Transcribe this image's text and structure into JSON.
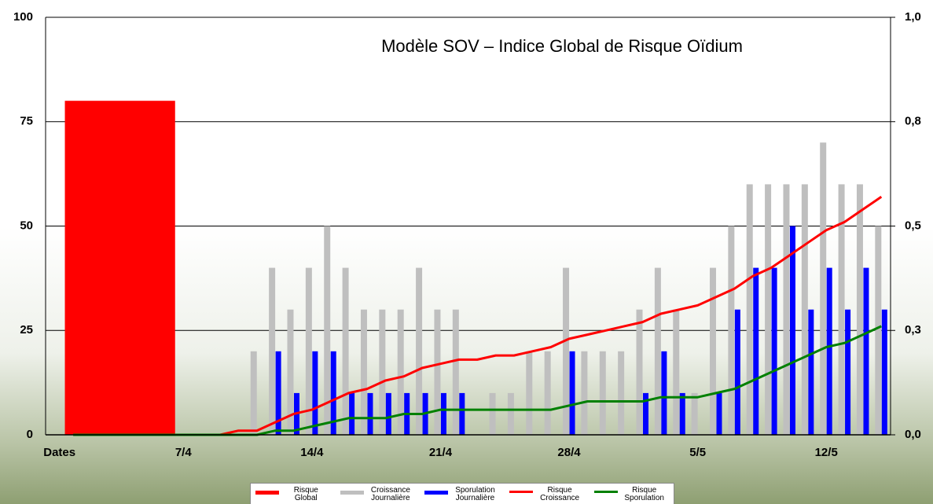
{
  "chart_data": {
    "type": "combo",
    "title": "Modèle SOV – Indice Global de Risque Oïdium",
    "categories": [
      "Dates",
      null,
      null,
      null,
      null,
      null,
      null,
      "7/4",
      null,
      null,
      null,
      null,
      null,
      null,
      "14/4",
      null,
      null,
      null,
      null,
      null,
      null,
      "21/4",
      null,
      null,
      null,
      null,
      null,
      null,
      "28/4",
      null,
      null,
      null,
      null,
      null,
      null,
      "5/5",
      null,
      null,
      null,
      null,
      null,
      null,
      "12/5",
      null,
      null,
      null
    ],
    "series": [
      {
        "name": "Risque Global",
        "type": "bar",
        "color": "#ff0000",
        "values": [
          80,
          null,
          null,
          null,
          null,
          null,
          null,
          null,
          null,
          null,
          null,
          null,
          null,
          null,
          null,
          null,
          null,
          null,
          null,
          null,
          null,
          null,
          null,
          null,
          null,
          null,
          null,
          null,
          null,
          null,
          null,
          null,
          null,
          null,
          null,
          null,
          null,
          null,
          null,
          null,
          null,
          null,
          null,
          null,
          null,
          null
        ]
      },
      {
        "name": "Croissance Journalière",
        "type": "bar",
        "color": "#bfbfbf",
        "values": [
          null,
          0,
          0,
          0,
          0,
          0,
          0,
          0,
          0,
          0,
          0,
          20,
          40,
          30,
          40,
          50,
          40,
          30,
          30,
          30,
          40,
          30,
          30,
          0,
          10,
          10,
          20,
          20,
          40,
          20,
          20,
          20,
          30,
          40,
          30,
          10,
          40,
          50,
          60,
          60,
          60,
          60,
          70,
          60,
          60,
          50
        ]
      },
      {
        "name": "Sporulation Journalière",
        "type": "bar",
        "color": "#0000ff",
        "values": [
          null,
          0,
          0,
          0,
          0,
          0,
          0,
          0,
          0,
          0,
          0,
          0,
          20,
          10,
          20,
          20,
          10,
          10,
          10,
          10,
          10,
          10,
          10,
          0,
          0,
          0,
          0,
          0,
          20,
          0,
          0,
          0,
          10,
          20,
          10,
          0,
          10,
          30,
          40,
          40,
          50,
          30,
          40,
          30,
          40,
          30
        ]
      },
      {
        "name": "Risque Croissance",
        "type": "line",
        "axis": "y2",
        "color": "#ff0000",
        "values": [
          null,
          null,
          null,
          null,
          null,
          null,
          null,
          null,
          null,
          0,
          0.01,
          0.01,
          0.03,
          0.05,
          0.06,
          0.08,
          0.1,
          0.11,
          0.13,
          0.14,
          0.16,
          0.17,
          0.18,
          0.18,
          0.19,
          0.19,
          0.2,
          0.21,
          0.23,
          0.24,
          0.25,
          0.26,
          0.27,
          0.29,
          0.3,
          0.31,
          0.33,
          0.35,
          0.38,
          0.4,
          0.43,
          0.46,
          0.49,
          0.51,
          0.54,
          0.57
        ]
      },
      {
        "name": "Risque Sporulation",
        "type": "line",
        "axis": "y2",
        "color": "#008000",
        "values": [
          null,
          0,
          0,
          0,
          0,
          0,
          0,
          0,
          0,
          0,
          0,
          0,
          0.01,
          0.01,
          0.02,
          0.03,
          0.04,
          0.04,
          0.04,
          0.05,
          0.05,
          0.06,
          0.06,
          0.06,
          0.06,
          0.06,
          0.06,
          0.06,
          0.07,
          0.08,
          0.08,
          0.08,
          0.08,
          0.09,
          0.09,
          0.09,
          0.1,
          0.11,
          0.13,
          0.15,
          0.17,
          0.19,
          0.21,
          0.22,
          0.24,
          0.26
        ]
      }
    ],
    "ylim": [
      0,
      100
    ],
    "yticks": [
      0,
      25,
      50,
      75,
      100
    ],
    "y2lim": [
      0,
      1
    ],
    "y2ticks": [
      {
        "value": 0,
        "label": "0,0"
      },
      {
        "value": 0.25,
        "label": "0,3"
      },
      {
        "value": 0.5,
        "label": "0,5"
      },
      {
        "value": 0.75,
        "label": "0,8"
      },
      {
        "value": 1,
        "label": "1,0"
      }
    ],
    "grid": true,
    "legend": "bottom"
  }
}
